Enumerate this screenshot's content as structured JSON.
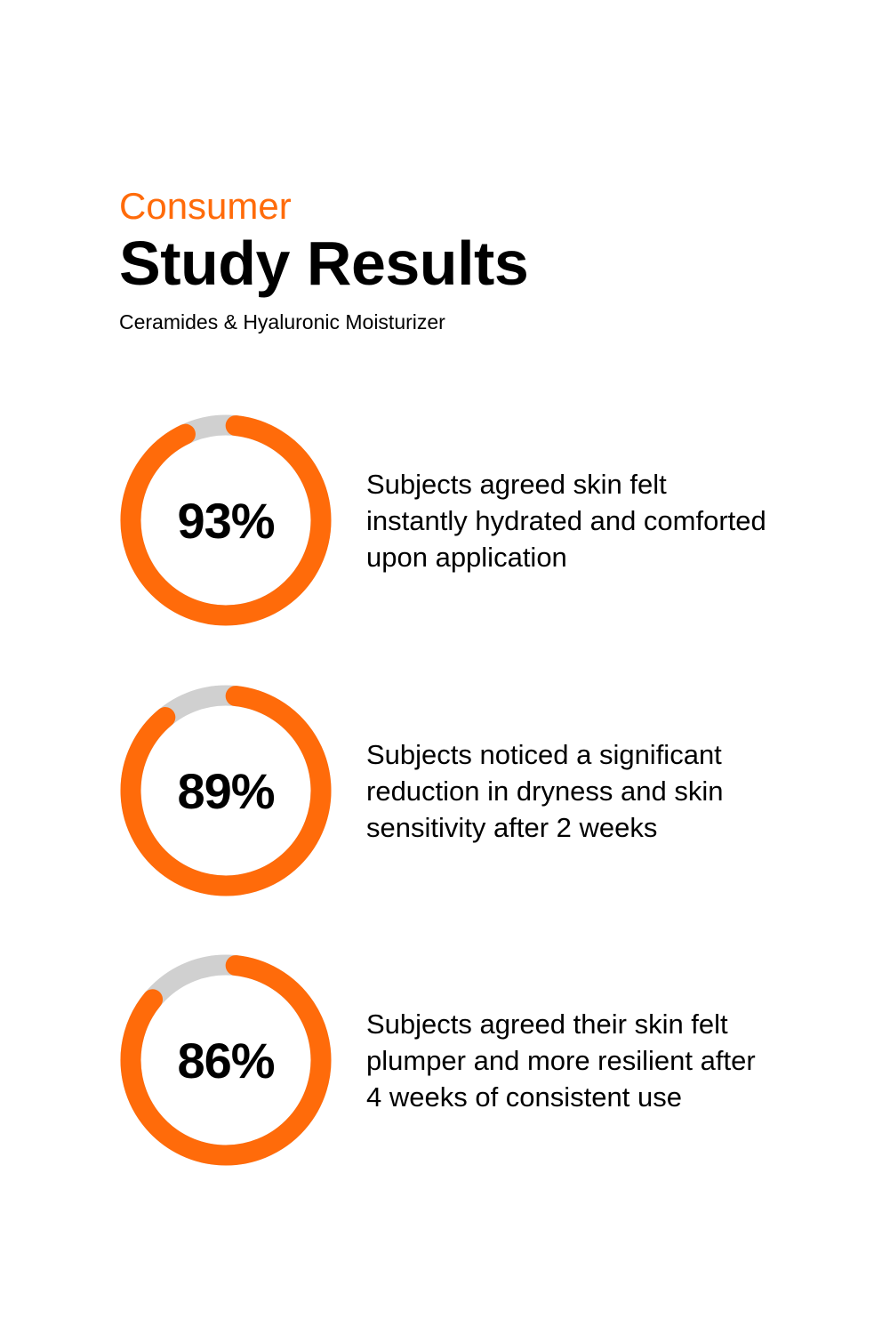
{
  "header": {
    "eyebrow": "Consumer",
    "title": "Study Results",
    "subtitle": "Ceramides & Hyaluronic Moisturizer"
  },
  "colors": {
    "accent": "#ff6b0a",
    "track": "#d0d0d0",
    "text": "#000000",
    "background": "#ffffff"
  },
  "chart_data": {
    "type": "donut",
    "items": [
      {
        "value": 93,
        "label": "93%",
        "description": "Subjects agreed skin felt instantly hydrated and comforted upon application"
      },
      {
        "value": 89,
        "label": "89%",
        "description": "Subjects noticed a significant reduction in dryness and skin sensitivity after 2 weeks"
      },
      {
        "value": 86,
        "label": "86%",
        "description": "Subjects agreed their skin felt plumper and more resilient after 4 weeks of consistent use"
      }
    ]
  }
}
